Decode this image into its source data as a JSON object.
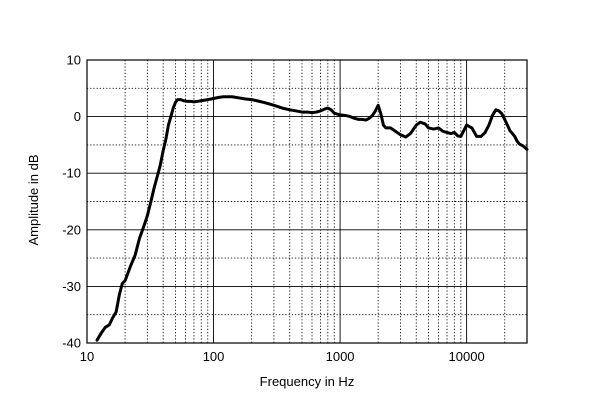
{
  "chart_data": {
    "type": "line",
    "title": "",
    "xlabel": "Frequency in Hz",
    "ylabel": "Amplitude in dB",
    "xscale": "log",
    "xlim": [
      10,
      30000
    ],
    "ylim": [
      -40,
      10
    ],
    "grid": true,
    "grid_style": "major solid, minor dotted",
    "x_ticks": [
      {
        "value": 10,
        "label": "10"
      },
      {
        "value": 100,
        "label": "100"
      },
      {
        "value": 1000,
        "label": "1000"
      },
      {
        "value": 10000,
        "label": "10000"
      }
    ],
    "y_ticks": [
      {
        "value": 10,
        "label": "10"
      },
      {
        "value": 0,
        "label": "0"
      },
      {
        "value": -10,
        "label": "-10"
      },
      {
        "value": -20,
        "label": "-20"
      },
      {
        "value": -30,
        "label": "-30"
      },
      {
        "value": -40,
        "label": "-40"
      }
    ],
    "line_color": "#000000",
    "series": [
      {
        "x": [
          12,
          13,
          14,
          15,
          16,
          17,
          18,
          19,
          20,
          22,
          24,
          26,
          28,
          30,
          32,
          34,
          36,
          38,
          40,
          42,
          44,
          46,
          48,
          50,
          52,
          55,
          58,
          62,
          66,
          70,
          75,
          80,
          90,
          100,
          110,
          120,
          130,
          140,
          150,
          160,
          170,
          180,
          200,
          220,
          250,
          280,
          300,
          350,
          400,
          450,
          500,
          550,
          600,
          650,
          700,
          750,
          800,
          850,
          900,
          1000,
          1100,
          1200,
          1300,
          1400,
          1500,
          1600,
          1700,
          1800,
          1900,
          2000,
          2100,
          2200,
          2300,
          2500,
          2700,
          3000,
          3300,
          3600,
          4000,
          4300,
          4700,
          5000,
          5500,
          6000,
          6500,
          7000,
          7500,
          8000,
          8500,
          9000,
          10000,
          11000,
          12000,
          13000,
          14000,
          15000,
          16000,
          17000,
          18000,
          19000,
          20000,
          21000,
          22000,
          23000,
          24000,
          25000,
          26000,
          27000,
          28000,
          30000
        ],
        "y": [
          -39.5,
          -38.2,
          -37.2,
          -36.8,
          -35.5,
          -34.5,
          -31.5,
          -29.5,
          -29.0,
          -26.5,
          -24.5,
          -21.5,
          -19.5,
          -17.5,
          -15.0,
          -12.5,
          -10.5,
          -8.5,
          -6.0,
          -4.0,
          -1.5,
          0.0,
          1.5,
          2.5,
          3.0,
          3.0,
          2.8,
          2.7,
          2.7,
          2.6,
          2.7,
          2.8,
          3.0,
          3.2,
          3.4,
          3.5,
          3.5,
          3.5,
          3.4,
          3.3,
          3.2,
          3.1,
          3.0,
          2.8,
          2.5,
          2.2,
          2.0,
          1.5,
          1.2,
          1.0,
          0.8,
          0.8,
          0.7,
          0.8,
          1.0,
          1.3,
          1.5,
          1.2,
          0.6,
          0.3,
          0.2,
          0.0,
          -0.3,
          -0.5,
          -0.5,
          -0.6,
          -0.3,
          0.2,
          1.0,
          2.0,
          0.5,
          -1.5,
          -2.0,
          -2.0,
          -2.5,
          -3.2,
          -3.6,
          -3.0,
          -1.5,
          -1.0,
          -1.3,
          -2.0,
          -2.2,
          -2.0,
          -2.6,
          -2.8,
          -3.0,
          -2.8,
          -3.4,
          -3.5,
          -1.5,
          -2.0,
          -3.5,
          -3.5,
          -2.8,
          -1.5,
          0.2,
          1.2,
          1.0,
          0.5,
          -0.5,
          -1.5,
          -2.5,
          -3.0,
          -3.5,
          -4.3,
          -4.8,
          -5.0,
          -5.2,
          -5.8
        ]
      }
    ]
  }
}
